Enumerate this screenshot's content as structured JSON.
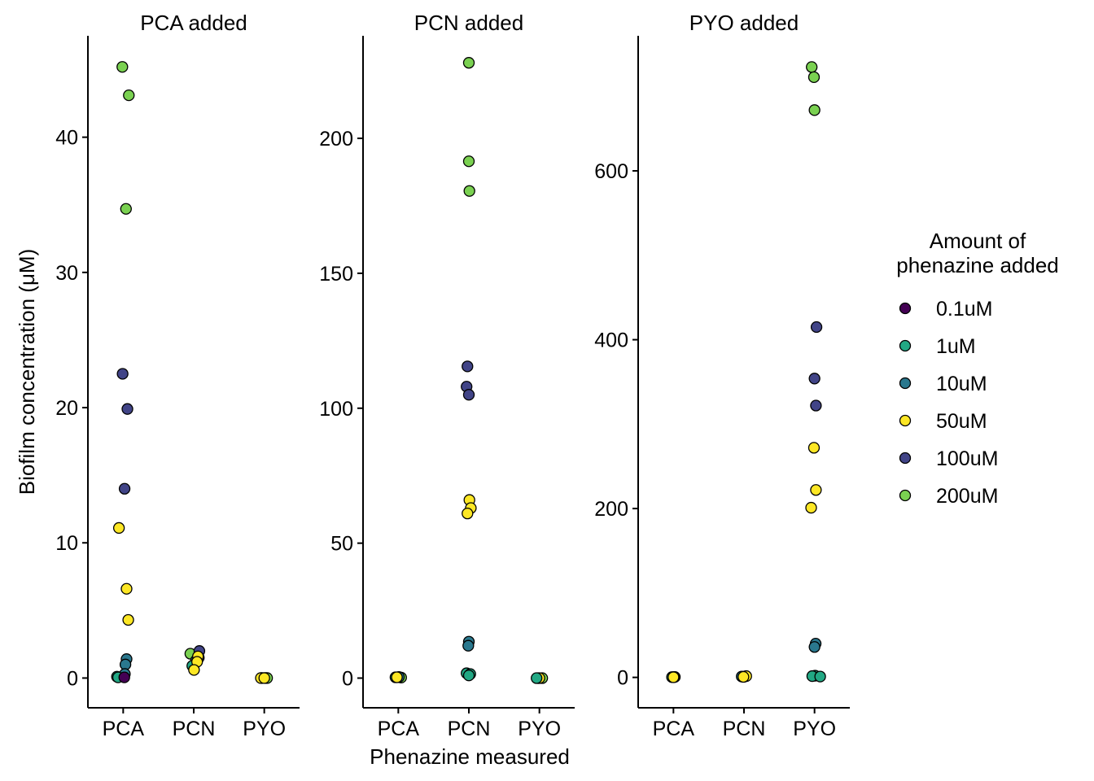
{
  "chart_data": {
    "type": "scatter",
    "xlabel": "Phenazine measured",
    "ylabel": "Biofilm concentration (μM)",
    "categories": [
      "PCA",
      "PCN",
      "PYO"
    ],
    "legend": {
      "title_lines": [
        "Amount of",
        "phenazine added"
      ],
      "placement": "right",
      "entries": [
        {
          "label": "0.1uM",
          "color": "#440154"
        },
        {
          "label": "1uM",
          "color": "#22A884"
        },
        {
          "label": "10uM",
          "color": "#2A788E"
        },
        {
          "label": "50uM",
          "color": "#FDE725"
        },
        {
          "label": "100uM",
          "color": "#414487"
        },
        {
          "label": "200uM",
          "color": "#7AD151"
        }
      ]
    },
    "panels": [
      {
        "title": "PCA added",
        "ylim": [
          -2.2,
          47.5
        ],
        "yticks": [
          0,
          10,
          20,
          30,
          40
        ],
        "points": [
          {
            "x": "PCA",
            "group": "200uM",
            "y": 45.2,
            "j": -0.03
          },
          {
            "x": "PCA",
            "group": "200uM",
            "y": 43.1,
            "j": 0.2
          },
          {
            "x": "PCA",
            "group": "200uM",
            "y": 34.7,
            "j": 0.1
          },
          {
            "x": "PCA",
            "group": "100uM",
            "y": 22.5,
            "j": -0.02
          },
          {
            "x": "PCA",
            "group": "100uM",
            "y": 19.9,
            "j": 0.15
          },
          {
            "x": "PCA",
            "group": "100uM",
            "y": 14.0,
            "j": 0.05
          },
          {
            "x": "PCA",
            "group": "50uM",
            "y": 11.1,
            "j": -0.15
          },
          {
            "x": "PCA",
            "group": "50uM",
            "y": 6.6,
            "j": 0.12
          },
          {
            "x": "PCA",
            "group": "50uM",
            "y": 4.3,
            "j": 0.18
          },
          {
            "x": "PCA",
            "group": "10uM",
            "y": 1.4,
            "j": 0.12
          },
          {
            "x": "PCA",
            "group": "10uM",
            "y": 1.0,
            "j": 0.08
          },
          {
            "x": "PCA",
            "group": "10uM",
            "y": 0.3,
            "j": 0.06
          },
          {
            "x": "PCA",
            "group": "1uM",
            "y": 0.1,
            "j": -0.22
          },
          {
            "x": "PCA",
            "group": "1uM",
            "y": 0.05,
            "j": -0.18
          },
          {
            "x": "PCA",
            "group": "0.1uM",
            "y": 0.05,
            "j": 0.04
          },
          {
            "x": "PCN",
            "group": "200uM",
            "y": 1.8,
            "j": -0.12
          },
          {
            "x": "PCN",
            "group": "100uM",
            "y": 2.0,
            "j": 0.2
          },
          {
            "x": "PCN",
            "group": "100uM",
            "y": 1.5,
            "j": 0.18
          },
          {
            "x": "PCN",
            "group": "10uM",
            "y": 1.3,
            "j": 0.08
          },
          {
            "x": "PCN",
            "group": "1uM",
            "y": 0.9,
            "j": -0.05
          },
          {
            "x": "PCN",
            "group": "50uM",
            "y": 1.6,
            "j": 0.15
          },
          {
            "x": "PCN",
            "group": "50uM",
            "y": 1.2,
            "j": 0.12
          },
          {
            "x": "PCN",
            "group": "50uM",
            "y": 0.6,
            "j": 0.01
          },
          {
            "x": "PYO",
            "group": "10uM",
            "y": 0.0,
            "j": -0.08
          },
          {
            "x": "PYO",
            "group": "1uM",
            "y": 0.0,
            "j": 0.05
          },
          {
            "x": "PYO",
            "group": "200uM",
            "y": 0.0,
            "j": 0.1
          },
          {
            "x": "PYO",
            "group": "50uM",
            "y": 0.0,
            "j": -0.12
          },
          {
            "x": "PYO",
            "group": "50uM",
            "y": 0.0,
            "j": 0.0
          }
        ]
      },
      {
        "title": "PCN added",
        "ylim": [
          -11,
          238
        ],
        "yticks": [
          0,
          50,
          100,
          150,
          200
        ],
        "points": [
          {
            "x": "PCA",
            "group": "1uM",
            "y": 0.3,
            "j": -0.1
          },
          {
            "x": "PCA",
            "group": "200uM",
            "y": 0.2,
            "j": 0.1
          },
          {
            "x": "PCA",
            "group": "10uM",
            "y": 0.4,
            "j": 0.02
          },
          {
            "x": "PCA",
            "group": "50uM",
            "y": 0.3,
            "j": -0.05
          },
          {
            "x": "PCN",
            "group": "200uM",
            "y": 228,
            "j": 0.0
          },
          {
            "x": "PCN",
            "group": "200uM",
            "y": 191.5,
            "j": 0.0
          },
          {
            "x": "PCN",
            "group": "200uM",
            "y": 180.5,
            "j": 0.02
          },
          {
            "x": "PCN",
            "group": "100uM",
            "y": 115.5,
            "j": -0.05
          },
          {
            "x": "PCN",
            "group": "100uM",
            "y": 108,
            "j": -0.08
          },
          {
            "x": "PCN",
            "group": "100uM",
            "y": 105,
            "j": 0.0
          },
          {
            "x": "PCN",
            "group": "50uM",
            "y": 66,
            "j": 0.02
          },
          {
            "x": "PCN",
            "group": "50uM",
            "y": 63,
            "j": 0.07
          },
          {
            "x": "PCN",
            "group": "50uM",
            "y": 61,
            "j": -0.05
          },
          {
            "x": "PCN",
            "group": "10uM",
            "y": 13.5,
            "j": 0.0
          },
          {
            "x": "PCN",
            "group": "10uM",
            "y": 12,
            "j": -0.02
          },
          {
            "x": "PCN",
            "group": "1uM",
            "y": 1.8,
            "j": -0.08
          },
          {
            "x": "PCN",
            "group": "1uM",
            "y": 1.5,
            "j": 0.05
          },
          {
            "x": "PCN",
            "group": "1uM",
            "y": 1.0,
            "j": 0.0
          },
          {
            "x": "PYO",
            "group": "10uM",
            "y": 0.0,
            "j": -0.05
          },
          {
            "x": "PYO",
            "group": "200uM",
            "y": 0.0,
            "j": 0.1
          },
          {
            "x": "PYO",
            "group": "50uM",
            "y": 0.0,
            "j": 0.0
          },
          {
            "x": "PYO",
            "group": "1uM",
            "y": 0.0,
            "j": -0.1
          }
        ]
      },
      {
        "title": "PYO added",
        "ylim": [
          -36,
          760
        ],
        "yticks": [
          0,
          200,
          400,
          600
        ],
        "points": [
          {
            "x": "PCA",
            "group": "1uM",
            "y": 0.3,
            "j": -0.05
          },
          {
            "x": "PCA",
            "group": "10uM",
            "y": 0.5,
            "j": 0.05
          },
          {
            "x": "PCA",
            "group": "200uM",
            "y": 0.4,
            "j": 0.02
          },
          {
            "x": "PCA",
            "group": "50uM",
            "y": 0.2,
            "j": 0.0
          },
          {
            "x": "PCN",
            "group": "10uM",
            "y": 1.0,
            "j": -0.08
          },
          {
            "x": "PCN",
            "group": "1uM",
            "y": 0.8,
            "j": 0.0
          },
          {
            "x": "PCN",
            "group": "50uM",
            "y": 1.5,
            "j": 0.08
          },
          {
            "x": "PCN",
            "group": "50uM",
            "y": 0.6,
            "j": -0.02
          },
          {
            "x": "PYO",
            "group": "200uM",
            "y": 723,
            "j": -0.1
          },
          {
            "x": "PYO",
            "group": "200uM",
            "y": 711,
            "j": -0.02
          },
          {
            "x": "PYO",
            "group": "200uM",
            "y": 672,
            "j": 0.0
          },
          {
            "x": "PYO",
            "group": "100uM",
            "y": 415,
            "j": 0.07
          },
          {
            "x": "PYO",
            "group": "100uM",
            "y": 354,
            "j": 0.0
          },
          {
            "x": "PYO",
            "group": "100uM",
            "y": 322,
            "j": 0.05
          },
          {
            "x": "PYO",
            "group": "50uM",
            "y": 272,
            "j": -0.02
          },
          {
            "x": "PYO",
            "group": "50uM",
            "y": 222,
            "j": 0.05
          },
          {
            "x": "PYO",
            "group": "50uM",
            "y": 201,
            "j": -0.12
          },
          {
            "x": "PYO",
            "group": "10uM",
            "y": 40,
            "j": 0.04
          },
          {
            "x": "PYO",
            "group": "10uM",
            "y": 36,
            "j": 0.0
          },
          {
            "x": "PYO",
            "group": "1uM",
            "y": 2,
            "j": 0.02
          },
          {
            "x": "PYO",
            "group": "1uM",
            "y": 1.5,
            "j": -0.08
          },
          {
            "x": "PYO",
            "group": "1uM",
            "y": 1.0,
            "j": 0.2
          }
        ]
      }
    ]
  }
}
